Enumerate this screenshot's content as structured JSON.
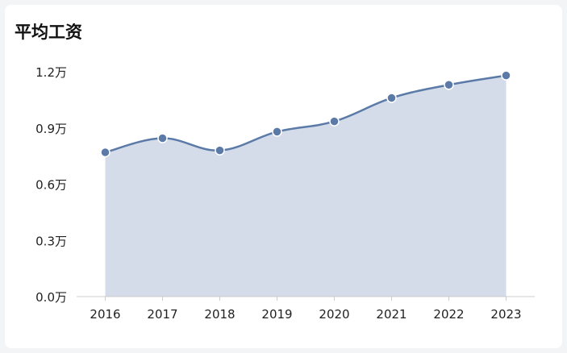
{
  "chart_data": {
    "type": "area",
    "title": "平均工资",
    "x": [
      "2016",
      "2017",
      "2018",
      "2019",
      "2020",
      "2021",
      "2022",
      "2023"
    ],
    "series": [
      {
        "values": [
          7700,
          8450,
          7800,
          8800,
          9350,
          10600,
          11300,
          11800
        ]
      }
    ],
    "y_ticks": [
      "0.0万",
      "0.3万",
      "0.6万",
      "0.9万",
      "1.2万"
    ],
    "ylim": [
      0,
      12000
    ],
    "xlabel": "",
    "ylabel": "",
    "grid": false,
    "colors": {
      "line": "#5b7aa8",
      "fill": "#d3dce8",
      "axis": "#cccccc"
    }
  }
}
